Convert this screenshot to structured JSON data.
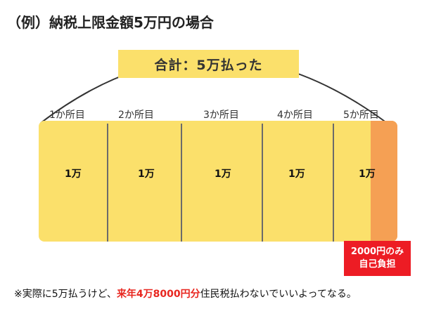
{
  "title": "（例）納税上限金額5万円の場合",
  "total_label": "合計：5万払った",
  "segments": [
    {
      "label": "1か所目",
      "value": "1万"
    },
    {
      "label": "2か所目",
      "value": "1万"
    },
    {
      "label": "3か所目",
      "value": "1万"
    },
    {
      "label": "4か所目",
      "value": "1万"
    },
    {
      "label": "5か所目",
      "value": "1万"
    }
  ],
  "self_payment": {
    "line1": "2000円のみ",
    "line2": "自己負担"
  },
  "note": {
    "prefix": "※実際に5万払うけど、",
    "highlight": "来年4万8000円分",
    "suffix": "住民税払わないでいいよってなる。"
  },
  "colors": {
    "bar": "#fbe06b",
    "self_pay_tail": "#f5a054",
    "self_pay_badge": "#ed1c24",
    "highlight_text": "#e8261f"
  }
}
